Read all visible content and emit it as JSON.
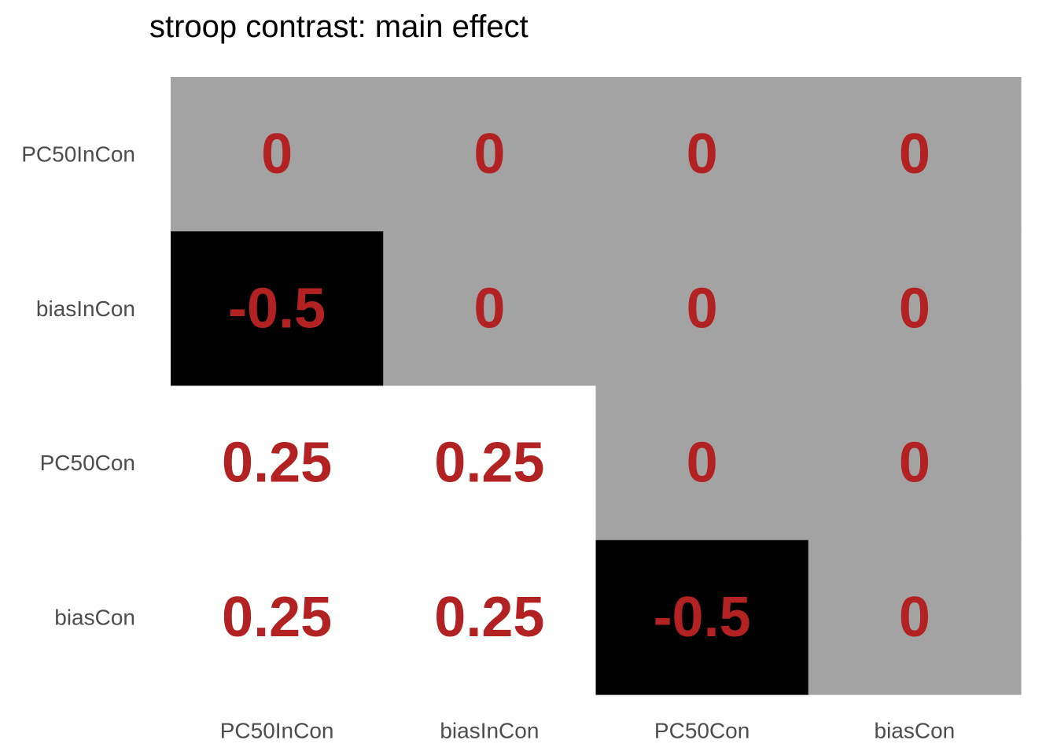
{
  "chart_data": {
    "type": "heatmap",
    "title": "stroop contrast: main effect",
    "xlabel": "",
    "ylabel": "",
    "x_categories": [
      "PC50InCon",
      "biasInCon",
      "PC50Con",
      "biasCon"
    ],
    "y_categories": [
      "PC50InCon",
      "biasInCon",
      "PC50Con",
      "biasCon"
    ],
    "values": [
      [
        "0",
        "0",
        "0",
        "0"
      ],
      [
        "-0.5",
        "0",
        "0",
        "0"
      ],
      [
        "0.25",
        "0.25",
        "0",
        "0"
      ],
      [
        "0.25",
        "0.25",
        "-0.5",
        "0"
      ]
    ],
    "color_scale": {
      "-0.5": "#000000",
      "0": "#a3a3a3",
      "0.25": "#ffffff"
    },
    "label_color": "#b22222",
    "grid": false,
    "legend": "none"
  }
}
